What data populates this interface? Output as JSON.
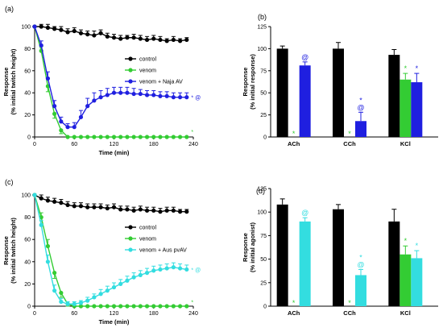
{
  "colors": {
    "control": "#000000",
    "venom": "#33cc33",
    "najaAV": "#1f1fe0",
    "ausPvAV": "#33dde0"
  },
  "chart_data": [
    {
      "id": "a",
      "type": "line",
      "panel_label": "(a)",
      "xlabel": "Time (min)",
      "ylabel": [
        "Response",
        "(% initial twitch height)"
      ],
      "xlim": [
        0,
        240
      ],
      "ylim": [
        0,
        100
      ],
      "xticks": [
        0,
        60,
        120,
        180,
        240
      ],
      "yticks": [
        0,
        20,
        40,
        60,
        80,
        100
      ],
      "legend_position": "center-right",
      "series": [
        {
          "name": "control",
          "color": "#000000",
          "x": [
            0,
            10,
            20,
            30,
            40,
            50,
            60,
            70,
            80,
            90,
            100,
            110,
            120,
            130,
            140,
            150,
            160,
            170,
            180,
            190,
            200,
            210,
            220,
            230
          ],
          "y": [
            100,
            100,
            99,
            98,
            97,
            95,
            96,
            94,
            93,
            92,
            94,
            91,
            90,
            89,
            90,
            90,
            89,
            88,
            89,
            88,
            87,
            88,
            87,
            88
          ],
          "err": [
            0,
            2,
            3,
            2,
            3,
            3,
            3,
            3,
            3,
            4,
            3,
            3,
            3,
            3,
            2,
            3,
            3,
            3,
            3,
            3,
            2,
            3,
            2,
            2
          ]
        },
        {
          "name": "venom",
          "color": "#33cc33",
          "x": [
            0,
            10,
            20,
            30,
            40,
            50,
            60,
            70,
            80,
            90,
            100,
            110,
            120,
            130,
            140,
            150,
            160,
            170,
            180,
            190,
            200,
            210,
            220,
            230
          ],
          "y": [
            100,
            78,
            46,
            21,
            6,
            0,
            0,
            0,
            0,
            0,
            0,
            0,
            0,
            0,
            0,
            0,
            0,
            0,
            0,
            0,
            0,
            0,
            0,
            0
          ],
          "err": [
            0,
            4,
            5,
            4,
            3,
            0,
            0,
            0,
            0,
            0,
            0,
            0,
            0,
            0,
            0,
            0,
            0,
            0,
            0,
            0,
            0,
            0,
            0,
            0
          ]
        },
        {
          "name": "venom + Naja AV",
          "color": "#1f1fe0",
          "x": [
            0,
            10,
            20,
            30,
            40,
            50,
            60,
            70,
            80,
            90,
            100,
            110,
            120,
            130,
            140,
            150,
            160,
            170,
            180,
            190,
            200,
            210,
            220,
            230
          ],
          "y": [
            100,
            83,
            53,
            28,
            14,
            9,
            9,
            18,
            28,
            33,
            36,
            38,
            40,
            40,
            40,
            39,
            39,
            38,
            38,
            37,
            37,
            36,
            36,
            36
          ],
          "err": [
            0,
            4,
            6,
            5,
            4,
            3,
            4,
            6,
            7,
            7,
            6,
            6,
            5,
            5,
            5,
            5,
            4,
            4,
            4,
            4,
            4,
            4,
            4,
            4
          ]
        }
      ],
      "annotations": [
        {
          "text": "* @",
          "x": 232,
          "y": 36,
          "color": "#1f1fe0"
        },
        {
          "text": "*",
          "x": 232,
          "y": 5,
          "color": "#33cc33"
        }
      ]
    },
    {
      "id": "b",
      "type": "bar",
      "panel_label": "(b)",
      "ylabel": [
        "Response",
        "(% initial response)"
      ],
      "ylim": [
        0,
        125
      ],
      "yticks": [
        0,
        25,
        50,
        75,
        100,
        125
      ],
      "categories": [
        "ACh",
        "CCh",
        "KCl"
      ],
      "series": [
        {
          "name": "control",
          "color": "#000000",
          "values": [
            100,
            100,
            93
          ],
          "err": [
            3,
            7,
            6
          ]
        },
        {
          "name": "venom",
          "color": "#33cc33",
          "values": [
            0,
            0,
            65
          ],
          "err": [
            0,
            0,
            7
          ]
        },
        {
          "name": "venom + Naja AV",
          "color": "#1f1fe0",
          "values": [
            81,
            18,
            62
          ],
          "err": [
            4,
            10,
            10
          ]
        }
      ],
      "annotations": [
        {
          "category": "ACh",
          "series": 1,
          "text": [
            "*"
          ]
        },
        {
          "category": "ACh",
          "series": 2,
          "text": [
            "@"
          ]
        },
        {
          "category": "CCh",
          "series": 1,
          "text": [
            "*"
          ]
        },
        {
          "category": "CCh",
          "series": 2,
          "text": [
            "*",
            "@"
          ]
        },
        {
          "category": "KCl",
          "series": 1,
          "text": [
            "*"
          ]
        },
        {
          "category": "KCl",
          "series": 2,
          "text": [
            "*"
          ]
        }
      ]
    },
    {
      "id": "c",
      "type": "line",
      "panel_label": "(c)",
      "xlabel": "Time (min)",
      "ylabel": [
        "Response",
        "(% initial twitch height)"
      ],
      "xlim": [
        0,
        240
      ],
      "ylim": [
        0,
        100
      ],
      "xticks": [
        0,
        60,
        120,
        180,
        240
      ],
      "yticks": [
        0,
        20,
        40,
        60,
        80,
        100
      ],
      "legend_position": "center-right",
      "series": [
        {
          "name": "control",
          "color": "#000000",
          "x": [
            0,
            10,
            20,
            30,
            40,
            50,
            60,
            70,
            80,
            90,
            100,
            110,
            120,
            130,
            140,
            150,
            160,
            170,
            180,
            190,
            200,
            210,
            220,
            230
          ],
          "y": [
            100,
            97,
            95,
            94,
            93,
            91,
            90,
            90,
            89,
            89,
            89,
            88,
            89,
            87,
            87,
            86,
            87,
            86,
            86,
            85,
            86,
            86,
            85,
            85
          ],
          "err": [
            0,
            3,
            3,
            3,
            3,
            3,
            3,
            3,
            3,
            3,
            3,
            3,
            3,
            3,
            3,
            3,
            3,
            3,
            3,
            3,
            3,
            3,
            2,
            2
          ]
        },
        {
          "name": "venom",
          "color": "#33cc33",
          "x": [
            0,
            10,
            20,
            30,
            40,
            50,
            60,
            70,
            80,
            90,
            100,
            110,
            120,
            130,
            140,
            150,
            160,
            170,
            180,
            190,
            200,
            210,
            220,
            230
          ],
          "y": [
            100,
            80,
            54,
            30,
            12,
            2,
            0,
            0,
            0,
            0,
            0,
            0,
            0,
            0,
            0,
            0,
            0,
            0,
            0,
            0,
            0,
            0,
            0,
            0
          ],
          "err": [
            0,
            4,
            6,
            5,
            4,
            2,
            0,
            0,
            0,
            0,
            0,
            0,
            0,
            0,
            0,
            0,
            0,
            0,
            0,
            0,
            0,
            0,
            0,
            0
          ]
        },
        {
          "name": "venom + Aus pvAV",
          "color": "#33dde0",
          "x": [
            0,
            10,
            20,
            30,
            40,
            50,
            60,
            70,
            80,
            90,
            100,
            110,
            120,
            130,
            140,
            150,
            160,
            170,
            180,
            190,
            200,
            210,
            220,
            230
          ],
          "y": [
            100,
            73,
            40,
            14,
            4,
            2,
            2,
            3,
            5,
            8,
            11,
            14,
            17,
            20,
            23,
            26,
            28,
            30,
            32,
            33,
            34,
            35,
            34,
            33
          ],
          "err": [
            0,
            4,
            6,
            5,
            3,
            2,
            2,
            2,
            3,
            3,
            4,
            4,
            4,
            4,
            4,
            4,
            4,
            4,
            4,
            4,
            4,
            4,
            4,
            4
          ]
        }
      ],
      "annotations": [
        {
          "text": "* @",
          "x": 232,
          "y": 33,
          "color": "#33dde0"
        },
        {
          "text": "*",
          "x": 232,
          "y": 4,
          "color": "#33cc33"
        }
      ]
    },
    {
      "id": "d",
      "type": "bar",
      "panel_label": "(d)",
      "ylabel": [
        "Response",
        "(% initial agonist)"
      ],
      "ylim": [
        0,
        125
      ],
      "yticks": [
        0,
        25,
        50,
        75,
        100,
        125
      ],
      "categories": [
        "ACh",
        "CCh",
        "KCl"
      ],
      "series": [
        {
          "name": "control",
          "color": "#000000",
          "values": [
            108,
            103,
            90
          ],
          "err": [
            6,
            5,
            13
          ]
        },
        {
          "name": "venom",
          "color": "#33cc33",
          "values": [
            0,
            0,
            55
          ],
          "err": [
            0,
            0,
            9
          ]
        },
        {
          "name": "venom + Aus pvAV",
          "color": "#33dde0",
          "values": [
            90,
            33,
            51
          ],
          "err": [
            4,
            6,
            8
          ]
        }
      ],
      "annotations": [
        {
          "category": "ACh",
          "series": 1,
          "text": [
            "*"
          ]
        },
        {
          "category": "ACh",
          "series": 2,
          "text": [
            "@"
          ]
        },
        {
          "category": "CCh",
          "series": 1,
          "text": [
            "*"
          ]
        },
        {
          "category": "CCh",
          "series": 2,
          "text": [
            "*",
            "@"
          ]
        },
        {
          "category": "KCl",
          "series": 1,
          "text": [
            "*"
          ]
        },
        {
          "category": "KCl",
          "series": 2,
          "text": [
            "*"
          ]
        }
      ]
    }
  ]
}
